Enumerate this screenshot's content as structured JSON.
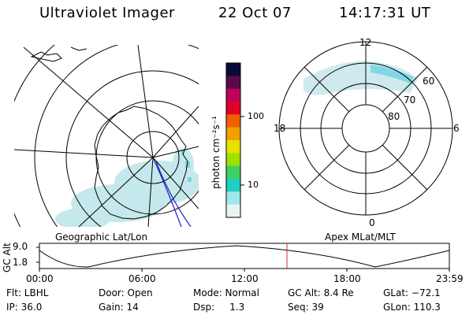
{
  "header": {
    "instrument": "Ultraviolet Imager",
    "date": "22 Oct 07",
    "time": "14:17:31 UT"
  },
  "panels": {
    "left_caption": "Geographic Lat/Lon",
    "right_caption": "Apex MLat/MLT"
  },
  "colorbar": {
    "unit_label": "photon cm⁻²s⁻¹",
    "ticks": [
      "100",
      "10"
    ],
    "colors": [
      "#0a0a3a",
      "#5a0a4a",
      "#c0005a",
      "#e0002a",
      "#f06000",
      "#f0a000",
      "#e8e000",
      "#a0e000",
      "#40d060",
      "#20d0c0",
      "#a0e8e8",
      "#e8f4f4"
    ]
  },
  "mlt_labels": {
    "top": "12",
    "left": "18",
    "right": "6",
    "bottom": "0"
  },
  "mlat_labels": [
    "60",
    "70",
    "80"
  ],
  "altitude": {
    "axis_label": "GC Alt",
    "ytick_top": "9.0",
    "ytick_bottom": "1.8",
    "xticks": [
      "00:00",
      "06:00",
      "12:00",
      "18:00",
      "23:59"
    ]
  },
  "info": {
    "flt": "Flt: LBHL",
    "door": "Door: Open",
    "mode": "Mode: Normal",
    "gc_alt": "GC Alt: 8.4 Re",
    "glat": "GLat: −72.1",
    "ip": "IP: 36.0",
    "gain": "Gain: 14",
    "dsp": "Dsp:     1.3",
    "seq": "Seq: 39",
    "glon": "GLon: 110.3"
  }
}
